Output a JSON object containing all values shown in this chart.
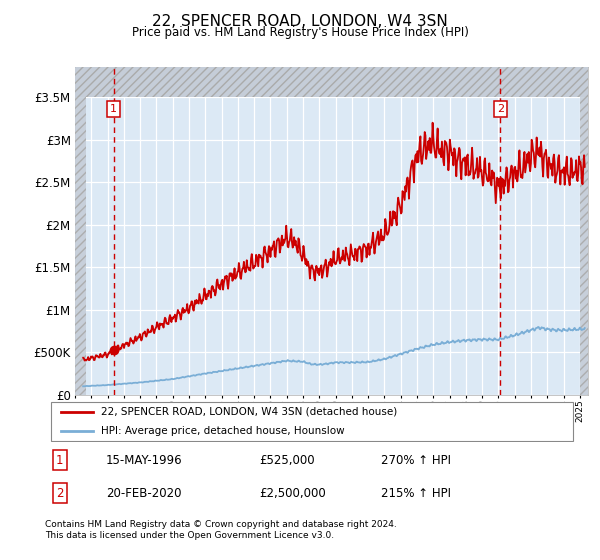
{
  "title": "22, SPENCER ROAD, LONDON, W4 3SN",
  "subtitle": "Price paid vs. HM Land Registry's House Price Index (HPI)",
  "sale1_year": 1996.37,
  "sale1_price": 525000,
  "sale2_year": 2020.12,
  "sale2_price": 2500000,
  "legend_line1": "22, SPENCER ROAD, LONDON, W4 3SN (detached house)",
  "legend_line2": "HPI: Average price, detached house, Hounslow",
  "footnote1": "Contains HM Land Registry data © Crown copyright and database right 2024.",
  "footnote2": "This data is licensed under the Open Government Licence v3.0.",
  "table1_label": "1",
  "table1_col1": "15-MAY-1996",
  "table1_col2": "£525,000",
  "table1_col3": "270% ↑ HPI",
  "table2_label": "2",
  "table2_col1": "20-FEB-2020",
  "table2_col2": "£2,500,000",
  "table2_col3": "215% ↑ HPI",
  "red_color": "#cc0000",
  "blue_color": "#7aaed6",
  "bg_color": "#dce9f5",
  "hatch_color": "#c5cdd8",
  "ymax": 3500000,
  "ymin": 0,
  "xmin": 1994.0,
  "xmax": 2025.5
}
